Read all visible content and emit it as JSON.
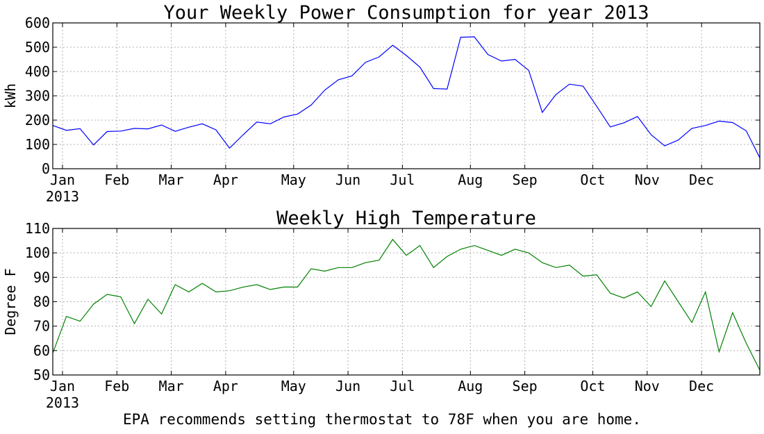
{
  "note": "EPA recommends setting thermostat to 78F when you are home.",
  "chart_data": [
    {
      "type": "line",
      "title": "Your Weekly Power Consumption for year 2013",
      "xlabel": "",
      "ylabel": "kWh",
      "ylim": [
        0,
        600
      ],
      "yticks": [
        0,
        100,
        200,
        300,
        400,
        500,
        600
      ],
      "grid": true,
      "line_color": "#0000ff",
      "x_start": "2013-01-01",
      "x_end": "2013-12-31",
      "xticks": [
        {
          "label": "Jan",
          "date": "2013-01-06"
        },
        {
          "label": "Feb",
          "date": "2013-02-03"
        },
        {
          "label": "Mar",
          "date": "2013-03-03"
        },
        {
          "label": "Apr",
          "date": "2013-03-31"
        },
        {
          "label": "May",
          "date": "2013-05-05"
        },
        {
          "label": "Jun",
          "date": "2013-06-02"
        },
        {
          "label": "Jul",
          "date": "2013-06-30"
        },
        {
          "label": "Aug",
          "date": "2013-08-04"
        },
        {
          "label": "Sep",
          "date": "2013-09-01"
        },
        {
          "label": "Oct",
          "date": "2013-10-06"
        },
        {
          "label": "Nov",
          "date": "2013-11-03"
        },
        {
          "label": "Dec",
          "date": "2013-12-01"
        }
      ],
      "year_label": "2013",
      "series": [
        {
          "x": [
            "2013-01-01",
            "2013-01-08",
            "2013-01-15",
            "2013-01-22",
            "2013-01-29",
            "2013-02-05",
            "2013-02-12",
            "2013-02-19",
            "2013-02-26",
            "2013-03-05",
            "2013-03-12",
            "2013-03-19",
            "2013-03-26",
            "2013-04-02",
            "2013-04-09",
            "2013-04-16",
            "2013-04-23",
            "2013-04-30",
            "2013-05-07",
            "2013-05-14",
            "2013-05-21",
            "2013-05-28",
            "2013-06-04",
            "2013-06-11",
            "2013-06-18",
            "2013-06-25",
            "2013-07-02",
            "2013-07-09",
            "2013-07-16",
            "2013-07-23",
            "2013-07-30",
            "2013-08-06",
            "2013-08-13",
            "2013-08-20",
            "2013-08-27",
            "2013-09-03",
            "2013-09-10",
            "2013-09-17",
            "2013-09-24",
            "2013-10-01",
            "2013-10-08",
            "2013-10-15",
            "2013-10-22",
            "2013-10-29",
            "2013-11-05",
            "2013-11-12",
            "2013-11-19",
            "2013-11-26",
            "2013-12-03",
            "2013-12-10",
            "2013-12-17",
            "2013-12-24",
            "2013-12-31"
          ],
          "values": [
            178,
            158,
            165,
            98,
            153,
            155,
            166,
            164,
            180,
            154,
            171,
            185,
            160,
            85,
            140,
            192,
            185,
            213,
            225,
            262,
            323,
            366,
            382,
            438,
            460,
            508,
            466,
            418,
            330,
            328,
            541,
            543,
            470,
            443,
            450,
            405,
            232,
            305,
            348,
            340,
            257,
            172,
            189,
            215,
            140,
            94,
            118,
            166,
            178,
            196,
            190,
            156,
            45
          ]
        }
      ]
    },
    {
      "type": "line",
      "title": "Weekly High Temperature",
      "xlabel": "",
      "ylabel": "Degree F",
      "ylim": [
        50,
        110
      ],
      "yticks": [
        50,
        60,
        70,
        80,
        90,
        100,
        110
      ],
      "grid": true,
      "line_color": "#008000",
      "x_start": "2013-01-01",
      "x_end": "2013-12-31",
      "xticks": [
        {
          "label": "Jan",
          "date": "2013-01-06"
        },
        {
          "label": "Feb",
          "date": "2013-02-03"
        },
        {
          "label": "Mar",
          "date": "2013-03-03"
        },
        {
          "label": "Apr",
          "date": "2013-03-31"
        },
        {
          "label": "May",
          "date": "2013-05-05"
        },
        {
          "label": "Jun",
          "date": "2013-06-02"
        },
        {
          "label": "Jul",
          "date": "2013-06-30"
        },
        {
          "label": "Aug",
          "date": "2013-08-04"
        },
        {
          "label": "Sep",
          "date": "2013-09-01"
        },
        {
          "label": "Oct",
          "date": "2013-10-06"
        },
        {
          "label": "Nov",
          "date": "2013-11-03"
        },
        {
          "label": "Dec",
          "date": "2013-12-01"
        }
      ],
      "year_label": "2013",
      "series": [
        {
          "x": [
            "2013-01-01",
            "2013-01-08",
            "2013-01-15",
            "2013-01-22",
            "2013-01-29",
            "2013-02-05",
            "2013-02-12",
            "2013-02-19",
            "2013-02-26",
            "2013-03-05",
            "2013-03-12",
            "2013-03-19",
            "2013-03-26",
            "2013-04-02",
            "2013-04-09",
            "2013-04-16",
            "2013-04-23",
            "2013-04-30",
            "2013-05-07",
            "2013-05-14",
            "2013-05-21",
            "2013-05-28",
            "2013-06-04",
            "2013-06-11",
            "2013-06-18",
            "2013-06-25",
            "2013-07-02",
            "2013-07-09",
            "2013-07-16",
            "2013-07-23",
            "2013-07-30",
            "2013-08-06",
            "2013-08-13",
            "2013-08-20",
            "2013-08-27",
            "2013-09-03",
            "2013-09-10",
            "2013-09-17",
            "2013-09-24",
            "2013-10-01",
            "2013-10-08",
            "2013-10-15",
            "2013-10-22",
            "2013-10-29",
            "2013-11-05",
            "2013-11-12",
            "2013-11-19",
            "2013-11-26",
            "2013-12-03",
            "2013-12-10",
            "2013-12-17",
            "2013-12-24",
            "2013-12-31"
          ],
          "values": [
            59,
            74,
            72,
            79,
            83,
            82,
            71,
            81,
            75,
            87,
            84,
            87.5,
            84,
            84.5,
            86,
            87,
            85,
            86,
            86,
            93.5,
            92.5,
            94,
            94,
            96,
            97,
            105.5,
            99,
            103,
            94,
            98.5,
            101.5,
            103,
            101,
            99,
            101.5,
            100,
            96,
            94,
            95,
            90.5,
            91,
            83.5,
            81.5,
            84,
            78,
            88.5,
            80,
            71.5,
            84,
            59.5,
            75.5,
            63,
            52
          ]
        }
      ]
    }
  ]
}
